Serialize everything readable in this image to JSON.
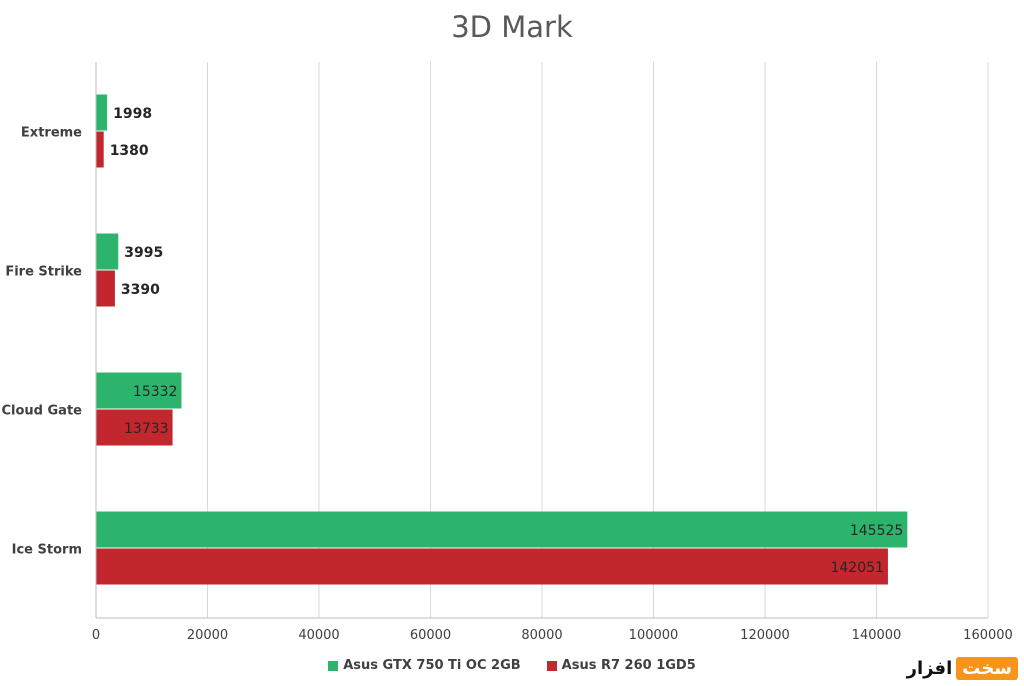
{
  "chart_data": {
    "type": "bar",
    "orientation": "horizontal",
    "title": "3D Mark",
    "xlabel": "",
    "ylabel": "",
    "categories": [
      "Extreme",
      "Fire Strike",
      "Cloud Gate",
      "Ice Storm"
    ],
    "series": [
      {
        "name": "Asus GTX 750 Ti OC 2GB",
        "color": "#2db46c",
        "values": [
          1998,
          3995,
          15332,
          145525
        ]
      },
      {
        "name": "Asus R7 260 1GD5",
        "color": "#c1272d",
        "values": [
          1380,
          3390,
          13733,
          142051
        ]
      }
    ],
    "xlim": [
      0,
      160000
    ],
    "ticks": [
      0,
      20000,
      40000,
      60000,
      80000,
      100000,
      120000,
      140000,
      160000
    ],
    "tick_labels": [
      "0",
      "20000",
      "40000",
      "60000",
      "80000",
      "100000",
      "120000",
      "140000",
      "160000"
    ],
    "grid": true,
    "legend_position": "bottom"
  },
  "watermark": {
    "part_a": "سخت",
    "part_b": "افزار"
  }
}
